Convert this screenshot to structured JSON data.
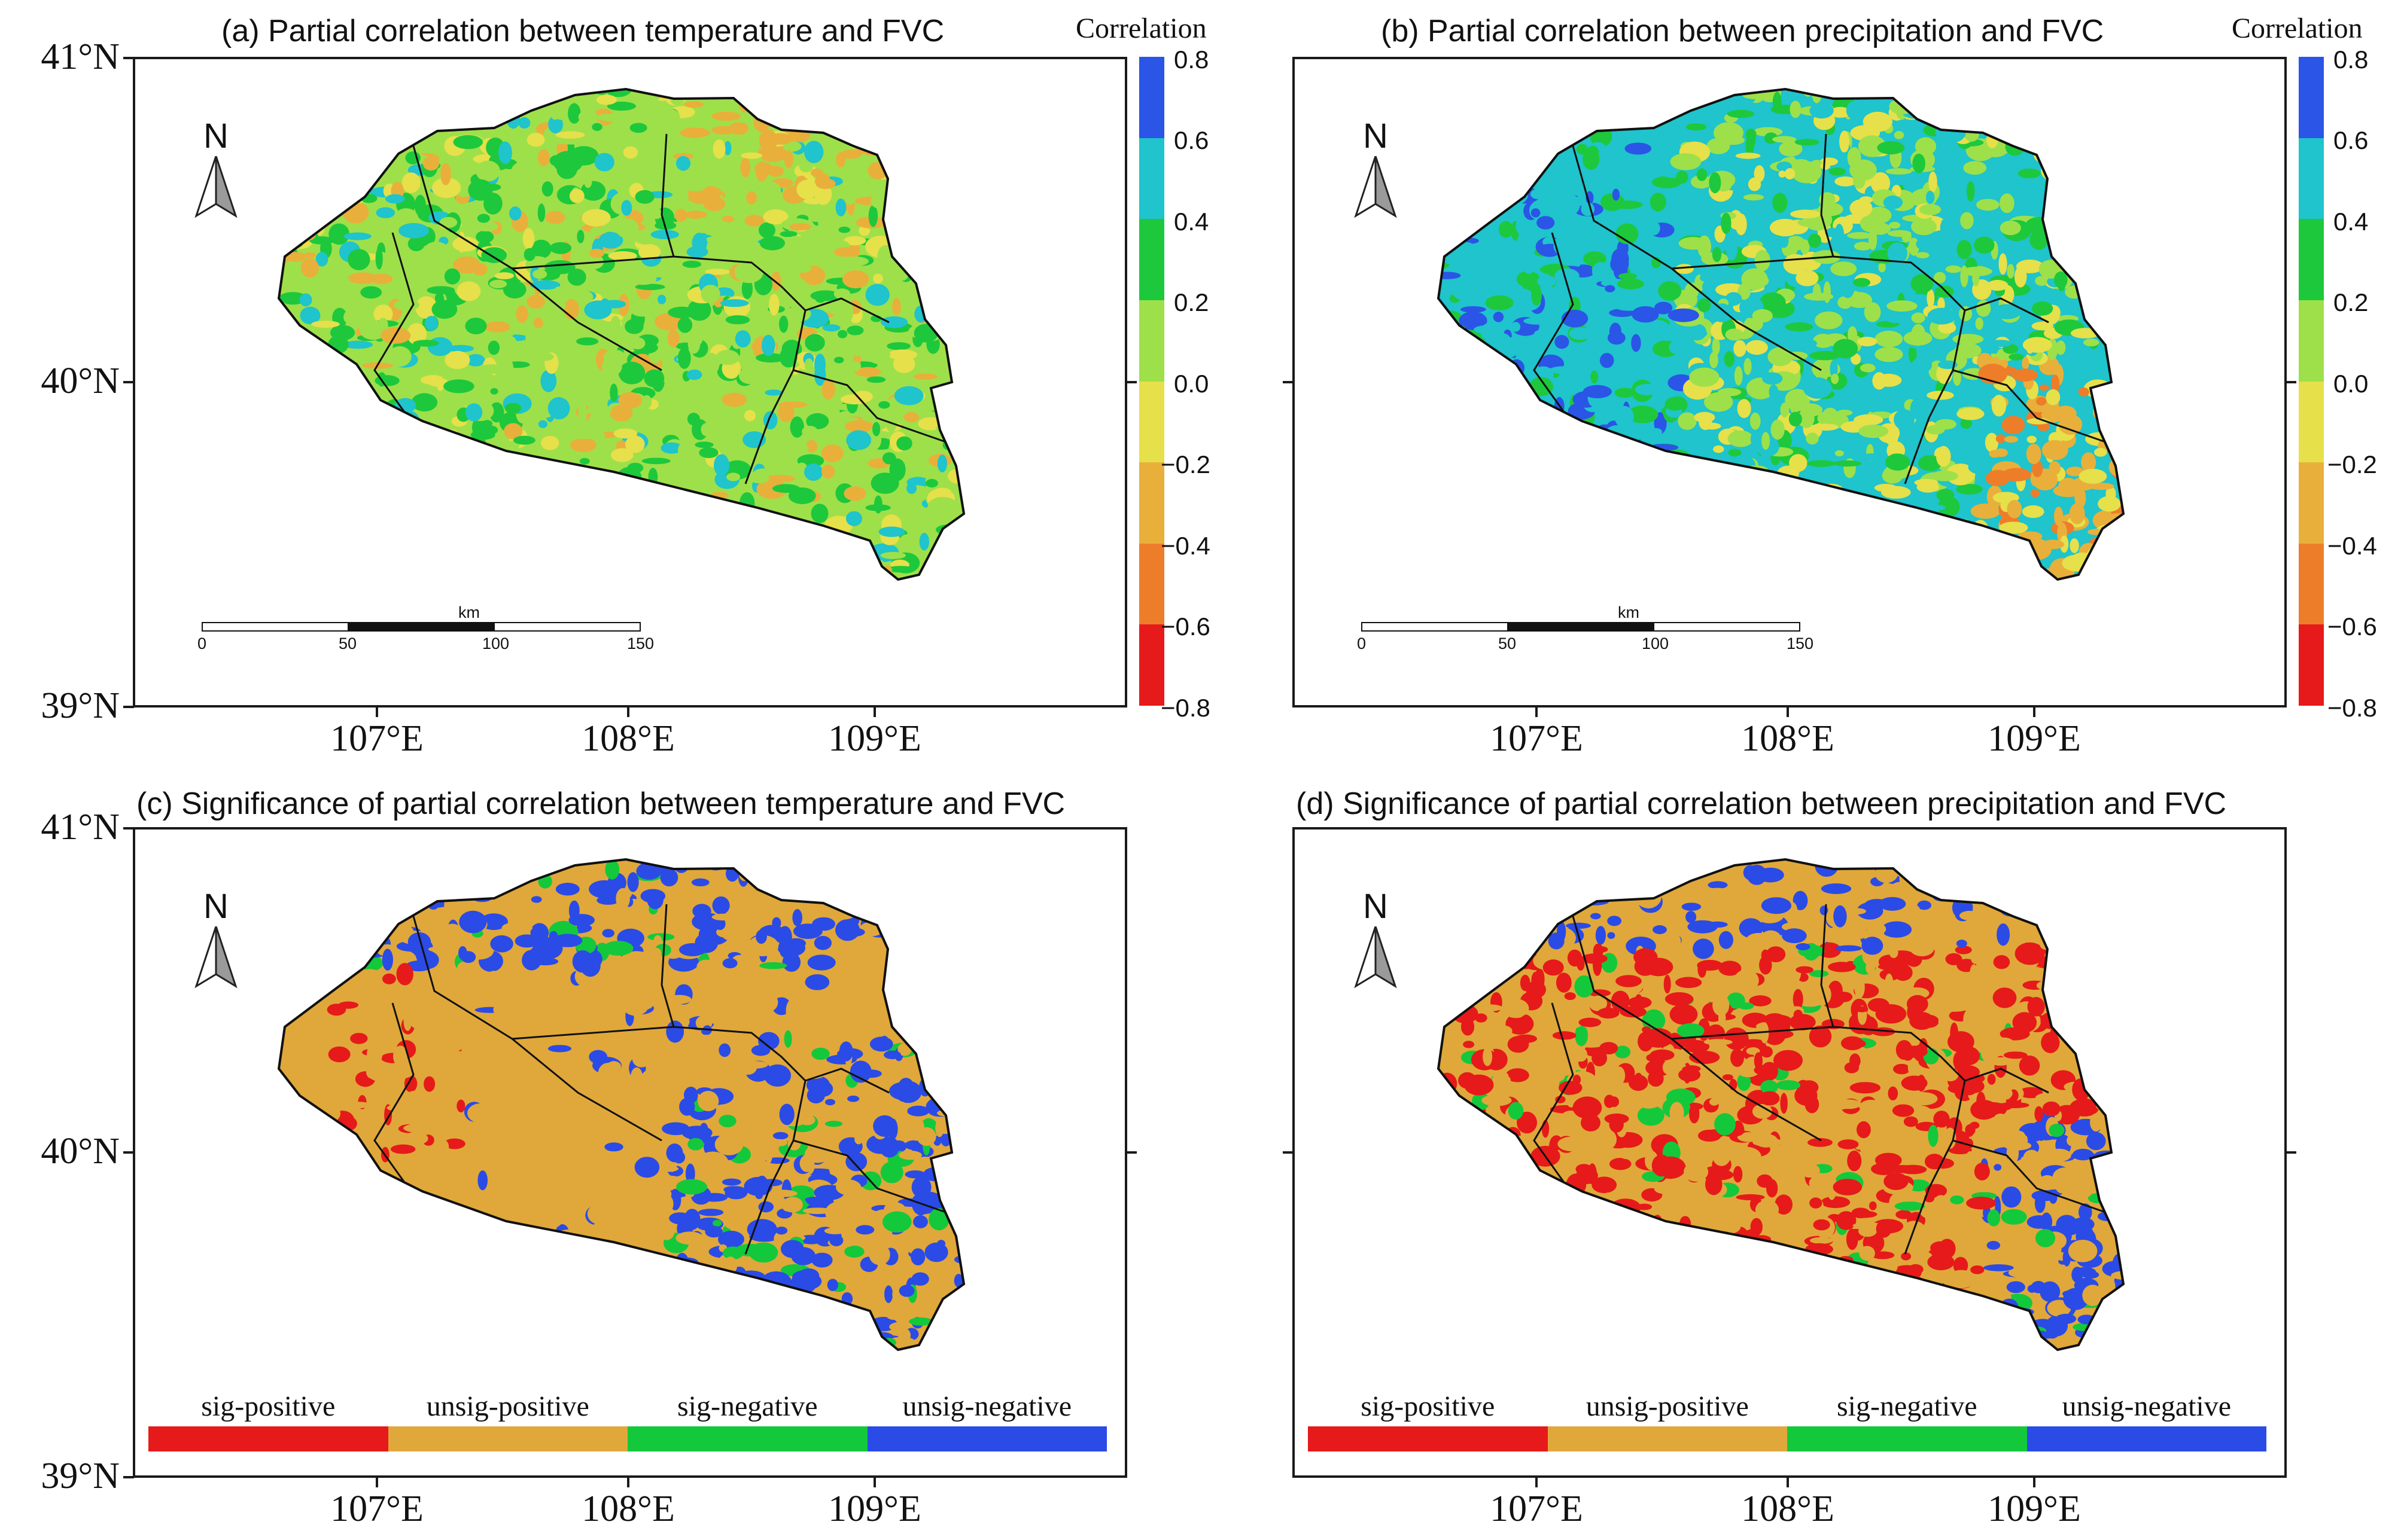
{
  "panels": [
    {
      "id": "a",
      "title": "(a) Partial correlation between temperature and  FVC",
      "kind": "correlation",
      "fill_variant": 0
    },
    {
      "id": "b",
      "title": "(b) Partial correlation between precipitation and  FVC",
      "kind": "correlation",
      "fill_variant": 1
    },
    {
      "id": "c",
      "title": "(c) Significance of partial correlation between temperature and  FVC",
      "kind": "significance",
      "fill_variant": 2
    },
    {
      "id": "d",
      "title": "(d) Significance of partial correlation between precipitation and  FVC",
      "kind": "significance",
      "fill_variant": 3
    }
  ],
  "axes": {
    "lat_labels": [
      "41°N",
      "40°N",
      "39°N"
    ],
    "lon_labels": [
      "107°E",
      "108°E",
      "109°E"
    ]
  },
  "colorbar": {
    "title": "Correlation",
    "labels": [
      "0.8",
      "0.6",
      "0.4",
      "0.2",
      "0.0",
      "−0.2",
      "−0.4",
      "−0.6",
      "−0.8"
    ],
    "colors": [
      "#2b55e6",
      "#1fc4cc",
      "#1ec83c",
      "#9ee04a",
      "#e6e04a",
      "#e8b03a",
      "#ee7d2a",
      "#e61a1a"
    ]
  },
  "north_arrow": {
    "letter": "N"
  },
  "scale_bar": {
    "unit": "km",
    "ticks": [
      "0",
      "50",
      "100",
      "150"
    ]
  },
  "significance_legend": [
    {
      "label": "sig-positive",
      "color": "#e61a1a"
    },
    {
      "label": "unsig-positive",
      "color": "#e0a83a"
    },
    {
      "label": "sig-negative",
      "color": "#14c83c"
    },
    {
      "label": "unsig-negative",
      "color": "#2b4be6"
    }
  ]
}
